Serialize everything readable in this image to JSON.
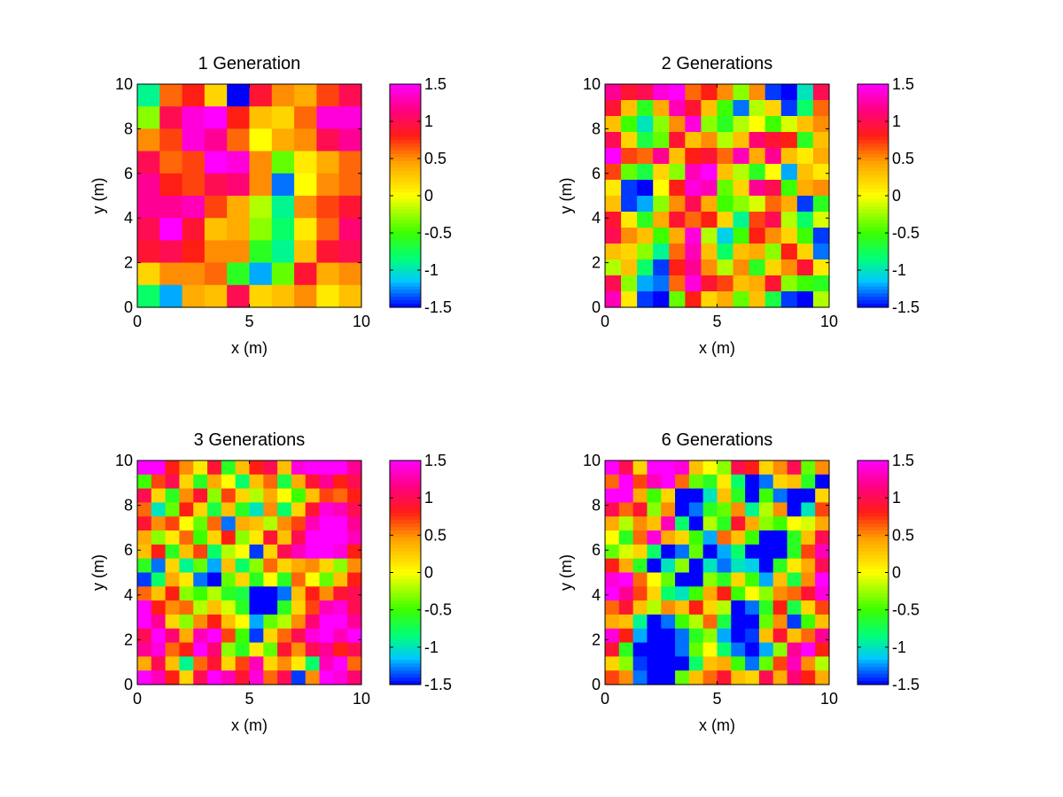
{
  "chart_data": [
    {
      "type": "heatmap",
      "title": "1 Generation",
      "xlabel": "x (m)",
      "ylabel": "y (m)",
      "xlim": [
        0,
        10
      ],
      "ylim": [
        0,
        10
      ],
      "xticks": [
        "0",
        "5",
        "10"
      ],
      "yticks": [
        "0",
        "2",
        "4",
        "6",
        "8",
        "10"
      ],
      "colorbar": {
        "range": [
          -1.5,
          1.5
        ],
        "ticks": [
          "1.5",
          "1",
          "0.5",
          "0",
          "-0.5",
          "-1",
          "-1.5"
        ]
      },
      "grid_resolution": 10,
      "z": [
        [
          -0.9,
          0.6,
          0.8,
          0.2,
          -1.5,
          0.9,
          0.5,
          0.4,
          0.7,
          1.0
        ],
        [
          -0.3,
          1.0,
          1.4,
          1.5,
          0.8,
          0.3,
          0.2,
          0.6,
          1.4,
          1.4
        ],
        [
          0.5,
          0.7,
          1.4,
          1.2,
          0.6,
          0.0,
          0.4,
          0.5,
          1.0,
          1.2
        ],
        [
          1.0,
          0.6,
          0.7,
          1.5,
          1.4,
          0.5,
          -0.4,
          0.1,
          0.4,
          0.6
        ],
        [
          1.2,
          0.8,
          0.7,
          1.0,
          1.1,
          0.5,
          -1.3,
          0.0,
          0.5,
          0.6
        ],
        [
          1.2,
          1.2,
          1.3,
          0.7,
          0.4,
          -0.2,
          -0.9,
          0.5,
          0.7,
          0.9
        ],
        [
          1.0,
          1.5,
          0.9,
          0.3,
          0.4,
          -0.3,
          -0.8,
          0.1,
          0.6,
          1.1
        ],
        [
          0.9,
          1.0,
          0.8,
          0.5,
          0.5,
          -0.6,
          -0.9,
          0.3,
          0.9,
          1.0
        ],
        [
          0.2,
          0.5,
          0.5,
          0.6,
          -0.6,
          -1.2,
          -0.4,
          0.9,
          0.4,
          0.5
        ],
        [
          -0.8,
          -1.2,
          0.4,
          0.3,
          1.0,
          0.2,
          0.3,
          0.5,
          0.1,
          0.3
        ]
      ]
    },
    {
      "type": "heatmap",
      "title": "2 Generations",
      "xlabel": "x (m)",
      "ylabel": "y (m)",
      "xlim": [
        0,
        10
      ],
      "ylim": [
        0,
        10
      ],
      "xticks": [
        "0",
        "5",
        "10"
      ],
      "yticks": [
        "0",
        "2",
        "4",
        "6",
        "8",
        "10"
      ],
      "colorbar": {
        "range": [
          -1.5,
          1.5
        ],
        "ticks": [
          "1.5",
          "1",
          "0.5",
          "0",
          "-0.5",
          "-1",
          "-1.5"
        ]
      },
      "grid_resolution": 14,
      "z": [
        [
          1.2,
          0.9,
          1.0,
          1.4,
          1.5,
          0.6,
          0.8,
          0.5,
          -0.3,
          0.5,
          -1.4,
          -1.5,
          -1.0,
          1.0
        ],
        [
          0.9,
          0.3,
          -0.6,
          0.4,
          1.3,
          0.9,
          0.3,
          -0.5,
          -1.3,
          -0.2,
          0.2,
          -1.4,
          -0.8,
          0.6
        ],
        [
          0.3,
          -0.5,
          -1.0,
          -0.3,
          0.5,
          1.4,
          -0.3,
          -0.6,
          -0.2,
          0.0,
          -0.5,
          -0.1,
          0.3,
          0.5
        ],
        [
          1.0,
          0.2,
          -0.7,
          -0.4,
          0.9,
          0.3,
          0.5,
          -0.2,
          0.3,
          1.1,
          0.9,
          0.8,
          -0.6,
          0.3
        ],
        [
          1.5,
          0.7,
          0.6,
          1.2,
          0.3,
          0.8,
          0.9,
          0.6,
          1.3,
          0.4,
          1.2,
          0.3,
          0.1,
          0.4
        ],
        [
          0.7,
          -0.4,
          -0.7,
          0.2,
          -0.3,
          1.3,
          1.5,
          0.3,
          -0.2,
          -0.6,
          0.0,
          -1.2,
          0.3,
          0.1
        ],
        [
          0.1,
          -1.4,
          -1.5,
          0.0,
          0.8,
          1.4,
          1.3,
          -0.4,
          0.2,
          1.2,
          1.0,
          -0.5,
          0.4,
          0.5
        ],
        [
          0.3,
          -1.4,
          -1.2,
          -0.3,
          0.5,
          1.0,
          0.4,
          -0.5,
          -0.3,
          -0.1,
          0.6,
          0.4,
          -1.4,
          -0.6
        ],
        [
          0.9,
          0.1,
          -0.6,
          0.4,
          0.9,
          0.6,
          0.8,
          0.2,
          -0.9,
          0.7,
          1.0,
          -0.2,
          -0.8,
          -0.1
        ],
        [
          1.0,
          0.5,
          0.3,
          -0.5,
          0.4,
          1.4,
          -0.2,
          -1.1,
          -0.5,
          0.8,
          0.5,
          0.2,
          -0.5,
          -1.4
        ],
        [
          0.3,
          0.2,
          -0.3,
          -0.9,
          0.6,
          1.3,
          0.3,
          -0.8,
          0.3,
          0.4,
          -0.3,
          0.8,
          0.2,
          -1.3
        ],
        [
          -0.2,
          0.3,
          -0.8,
          -1.4,
          0.8,
          1.2,
          0.5,
          -0.2,
          0.5,
          -0.6,
          0.2,
          0.5,
          0.9,
          0.1
        ],
        [
          1.0,
          -0.3,
          -1.2,
          -1.3,
          0.6,
          1.4,
          0.9,
          0.7,
          0.3,
          0.4,
          0.9,
          -0.3,
          -0.5,
          -0.6
        ],
        [
          1.3,
          0.1,
          -1.4,
          -1.5,
          -0.4,
          0.8,
          0.2,
          0.4,
          -0.4,
          0.3,
          -0.7,
          -1.4,
          -1.5,
          -0.2
        ]
      ]
    },
    {
      "type": "heatmap",
      "title": "3 Generations",
      "xlabel": "x (m)",
      "ylabel": "y (m)",
      "xlim": [
        0,
        10
      ],
      "ylim": [
        0,
        10
      ],
      "xticks": [
        "0",
        "5",
        "10"
      ],
      "yticks": [
        "0",
        "2",
        "4",
        "6",
        "8",
        "10"
      ],
      "colorbar": {
        "range": [
          -1.5,
          1.5
        ],
        "ticks": [
          "1.5",
          "1",
          "0.5",
          "0",
          "-0.5",
          "-1",
          "-1.5"
        ]
      },
      "grid_resolution": 16,
      "z": [
        [
          1.5,
          1.5,
          0.8,
          0.5,
          0.1,
          0.9,
          -0.6,
          0.3,
          0.8,
          1.0,
          0.3,
          1.4,
          1.5,
          1.5,
          1.5,
          1.2
        ],
        [
          -0.5,
          0.7,
          1.0,
          0.2,
          -0.6,
          0.4,
          0.0,
          -0.8,
          0.3,
          0.6,
          -0.7,
          0.4,
          0.9,
          1.2,
          0.8,
          1.0
        ],
        [
          1.0,
          0.2,
          -0.6,
          0.5,
          0.9,
          -0.3,
          0.7,
          0.2,
          -0.2,
          0.4,
          0.0,
          -0.5,
          0.3,
          0.7,
          0.6,
          0.8
        ],
        [
          0.6,
          -1.0,
          -0.4,
          0.8,
          0.2,
          -0.7,
          0.3,
          -0.6,
          -1.0,
          0.5,
          -0.8,
          0.2,
          0.9,
          1.4,
          1.3,
          1.0
        ],
        [
          0.9,
          0.5,
          0.7,
          0.0,
          -0.4,
          0.6,
          -1.3,
          0.4,
          0.3,
          -0.2,
          0.5,
          0.7,
          1.3,
          1.5,
          1.5,
          1.2
        ],
        [
          0.4,
          -0.3,
          0.1,
          0.6,
          -0.5,
          0.2,
          0.8,
          -0.3,
          0.1,
          0.9,
          0.3,
          1.0,
          1.5,
          1.5,
          1.5,
          1.3
        ],
        [
          0.3,
          0.8,
          -0.6,
          0.3,
          0.7,
          -0.8,
          -0.2,
          0.0,
          -1.4,
          0.2,
          1.0,
          1.3,
          1.5,
          1.5,
          1.4,
          0.8
        ],
        [
          -0.6,
          -1.3,
          0.2,
          -0.9,
          -0.4,
          -1.2,
          0.3,
          -0.8,
          -0.3,
          0.6,
          0.2,
          0.4,
          0.5,
          0.2,
          -0.3,
          0.5
        ],
        [
          -1.4,
          -0.8,
          0.4,
          0.1,
          -1.3,
          -1.5,
          -0.4,
          0.2,
          -0.6,
          0.0,
          -0.6,
          0.6,
          0.0,
          -0.4,
          0.3,
          0.8
        ],
        [
          0.6,
          0.3,
          0.8,
          -0.3,
          -0.5,
          -0.2,
          -0.6,
          -0.7,
          -1.5,
          -1.5,
          -1.3,
          0.3,
          0.8,
          0.5,
          0.9,
          1.0
        ],
        [
          1.5,
          0.8,
          0.5,
          0.6,
          -0.2,
          0.3,
          -0.1,
          -0.6,
          -1.5,
          -1.5,
          -0.6,
          0.2,
          0.7,
          1.3,
          1.4,
          1.0
        ],
        [
          1.5,
          1.2,
          0.2,
          -0.3,
          0.5,
          0.8,
          0.3,
          0.0,
          -1.2,
          -0.4,
          -0.2,
          0.5,
          1.1,
          1.5,
          1.5,
          1.2
        ],
        [
          1.0,
          1.5,
          1.1,
          0.4,
          1.3,
          1.5,
          0.7,
          -0.5,
          -1.4,
          0.2,
          0.6,
          1.0,
          1.4,
          1.5,
          1.3,
          1.5
        ],
        [
          1.2,
          1.4,
          0.6,
          0.8,
          1.5,
          1.1,
          -0.3,
          -0.6,
          0.1,
          -0.4,
          0.9,
          0.5,
          1.0,
          1.2,
          0.8,
          1.0
        ],
        [
          0.4,
          1.0,
          0.3,
          -0.9,
          0.6,
          0.9,
          0.2,
          0.7,
          1.3,
          0.2,
          0.5,
          0.1,
          -0.8,
          1.3,
          1.5,
          0.6
        ],
        [
          1.5,
          1.3,
          0.8,
          0.2,
          1.0,
          1.5,
          1.3,
          0.9,
          1.4,
          0.6,
          1.0,
          -1.4,
          0.5,
          1.5,
          1.4,
          1.1
        ]
      ]
    },
    {
      "type": "heatmap",
      "title": "6 Generations",
      "xlabel": "x (m)",
      "ylabel": "y (m)",
      "xlim": [
        0,
        10
      ],
      "ylim": [
        0,
        10
      ],
      "xticks": [
        "0",
        "5",
        "10"
      ],
      "yticks": [
        "0",
        "2",
        "4",
        "6",
        "8",
        "10"
      ],
      "colorbar": {
        "range": [
          -1.5,
          1.5
        ],
        "ticks": [
          "1.5",
          "1",
          "0.5",
          "0",
          "-0.5",
          "-1",
          "-1.5"
        ]
      },
      "grid_resolution": 16,
      "z": [
        [
          1.5,
          1.0,
          0.2,
          1.5,
          1.5,
          1.4,
          0.3,
          0.0,
          -0.3,
          1.0,
          0.8,
          0.2,
          0.5,
          1.0,
          -0.4,
          0.5
        ],
        [
          0.6,
          1.5,
          0.7,
          1.3,
          1.5,
          0.6,
          -0.4,
          -0.6,
          0.1,
          -0.8,
          -1.5,
          -1.3,
          0.2,
          0.3,
          -0.6,
          -1.5
        ],
        [
          1.5,
          1.5,
          0.4,
          -0.5,
          0.2,
          -1.5,
          -1.5,
          -1.0,
          0.3,
          -0.6,
          -1.5,
          -0.5,
          -1.3,
          -1.5,
          -1.5,
          0.2
        ],
        [
          1.0,
          0.6,
          0.9,
          -0.3,
          0.5,
          -1.5,
          -1.3,
          -0.6,
          -0.4,
          0.5,
          -0.9,
          -0.2,
          0.5,
          -1.5,
          -1.0,
          0.7
        ],
        [
          0.4,
          -0.2,
          0.5,
          0.3,
          1.3,
          -0.8,
          -1.5,
          -0.2,
          -0.6,
          0.9,
          0.4,
          -0.3,
          -0.5,
          0.0,
          -0.1,
          0.4
        ],
        [
          0.0,
          -0.6,
          0.6,
          1.4,
          0.4,
          0.2,
          -0.5,
          -1.2,
          0.6,
          0.3,
          -0.5,
          -1.5,
          -1.5,
          -0.6,
          0.3,
          1.0
        ],
        [
          -0.4,
          -0.1,
          0.2,
          -0.8,
          -1.5,
          -1.3,
          -0.4,
          -1.5,
          -1.2,
          -0.8,
          -1.5,
          -1.5,
          -1.5,
          -0.6,
          0.7,
          1.3
        ],
        [
          0.8,
          0.4,
          -0.6,
          -1.5,
          -1.0,
          -0.3,
          -1.5,
          -1.0,
          -1.3,
          -1.0,
          -1.1,
          -1.5,
          -0.6,
          0.1,
          0.4,
          1.0
        ],
        [
          1.4,
          1.5,
          0.6,
          0.0,
          -0.4,
          -1.5,
          -1.5,
          -0.3,
          -0.6,
          0.2,
          -0.5,
          -1.2,
          0.3,
          -0.7,
          0.5,
          1.5
        ],
        [
          1.5,
          1.2,
          0.7,
          0.2,
          -0.8,
          -1.0,
          -0.5,
          0.4,
          0.8,
          -0.5,
          0.0,
          -0.3,
          0.5,
          0.6,
          0.9,
          1.4
        ],
        [
          0.6,
          0.9,
          0.3,
          -0.2,
          0.5,
          0.3,
          0.8,
          0.2,
          -0.2,
          -1.5,
          -1.3,
          -0.6,
          0.8,
          -0.7,
          0.2,
          0.7
        ],
        [
          0.4,
          0.3,
          -0.9,
          -1.5,
          -1.3,
          -0.5,
          -0.2,
          0.6,
          -0.7,
          -1.5,
          -1.5,
          -0.4,
          0.5,
          -1.4,
          -0.5,
          0.3
        ],
        [
          1.4,
          0.8,
          -1.2,
          -1.5,
          -1.5,
          -1.3,
          -0.6,
          -0.3,
          -1.2,
          -1.5,
          -1.4,
          0.3,
          0.9,
          0.3,
          0.6,
          1.2
        ],
        [
          0.9,
          -0.6,
          -1.5,
          -1.5,
          -1.5,
          -1.3,
          -0.4,
          0.0,
          -0.8,
          -1.3,
          -1.5,
          -1.2,
          -0.3,
          1.2,
          1.5,
          0.8
        ],
        [
          0.2,
          -0.3,
          -1.4,
          -1.5,
          -1.5,
          -1.5,
          -0.8,
          0.3,
          0.4,
          -0.5,
          -1.3,
          -0.4,
          0.7,
          1.3,
          0.5,
          -0.2
        ],
        [
          0.7,
          0.5,
          -1.3,
          -1.5,
          -1.5,
          -0.4,
          0.3,
          0.6,
          0.9,
          0.3,
          0.2,
          1.0,
          0.4,
          1.1,
          0.8,
          0.4
        ]
      ]
    }
  ]
}
